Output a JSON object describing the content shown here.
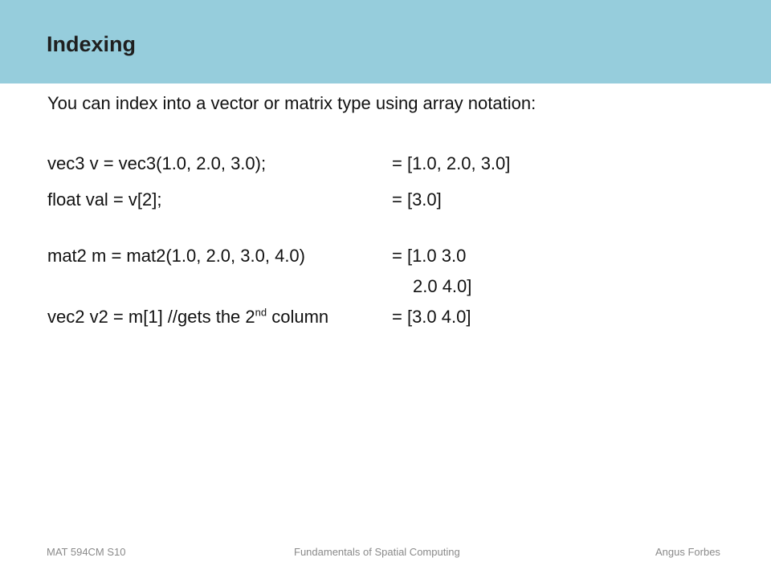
{
  "slide": {
    "title": "Indexing",
    "intro": "You can index into a vector or matrix type using array notation:",
    "rows": [
      {
        "code": "vec3 v = vec3(1.0, 2.0, 3.0);",
        "result": "= [1.0, 2.0, 3.0]"
      },
      {
        "code": "float val = v[2];",
        "result": "= [3.0]"
      },
      {
        "code": "mat2 m = mat2(1.0, 2.0, 3.0, 4.0)",
        "result": "= [1.0 3.0"
      },
      {
        "code": "",
        "result": "2.0 4.0]"
      },
      {
        "code_prefix": "vec2 v2 = m[1] //gets the 2",
        "code_sup": "nd",
        "code_suffix": " column",
        "result": "= [3.0 4.0]"
      }
    ]
  },
  "footer": {
    "left": "MAT 594CM S10",
    "center": "Fundamentals of Spatial Computing",
    "right": "Angus Forbes"
  },
  "colors": {
    "header_band": "#96cddc"
  }
}
